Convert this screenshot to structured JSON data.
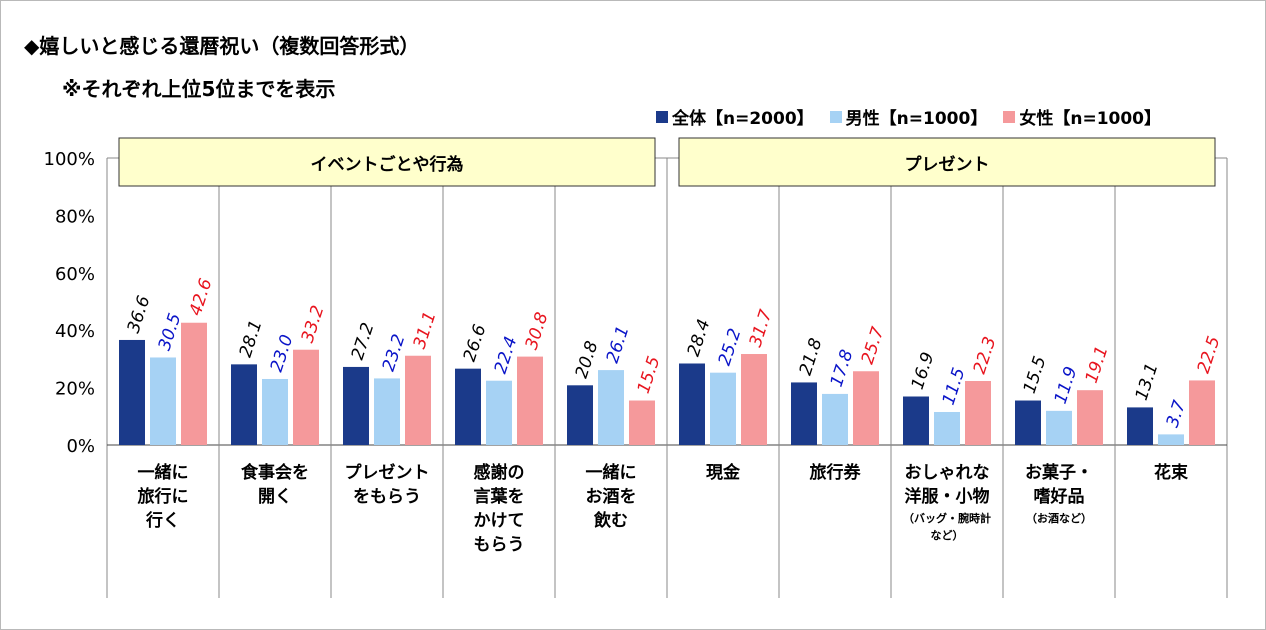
{
  "title": "◆嬉しいと感じる還暦祝い（複数回答形式）",
  "subtitle": "※それぞれ上位5位までを表示",
  "legend": [
    {
      "label": "全体【n=2000】",
      "color": "#1b3a8a"
    },
    {
      "label": "男性【n=1000】",
      "color": "#a6d2f4"
    },
    {
      "label": "女性【n=1000】",
      "color": "#f5999b"
    }
  ],
  "label_colors": [
    "#000000",
    "#0a14c8",
    "#e8141e"
  ],
  "chart_data": {
    "type": "bar",
    "ylim": [
      0,
      100
    ],
    "yticks": [
      "0%",
      "20%",
      "40%",
      "60%",
      "80%",
      "100%"
    ],
    "groups": [
      {
        "label": "イベントごとや行為",
        "start": 0,
        "end": 4
      },
      {
        "label": "プレゼント",
        "start": 5,
        "end": 9
      }
    ],
    "categories": [
      {
        "lines": [
          "一緒に",
          "旅行に",
          "行く"
        ],
        "note": []
      },
      {
        "lines": [
          "食事会を",
          "開く"
        ],
        "note": []
      },
      {
        "lines": [
          "プレゼント",
          "をもらう"
        ],
        "note": []
      },
      {
        "lines": [
          "感謝の",
          "言葉を",
          "かけて",
          "もらう"
        ],
        "note": []
      },
      {
        "lines": [
          "一緒に",
          "お酒を",
          "飲む"
        ],
        "note": []
      },
      {
        "lines": [
          "現金"
        ],
        "note": []
      },
      {
        "lines": [
          "旅行券"
        ],
        "note": []
      },
      {
        "lines": [
          "おしゃれな",
          "洋服・小物"
        ],
        "note": [
          "（バッグ・腕時計",
          "など）"
        ]
      },
      {
        "lines": [
          "お菓子・",
          "嗜好品"
        ],
        "note": [
          "（お酒など）"
        ]
      },
      {
        "lines": [
          "花束"
        ],
        "note": []
      }
    ],
    "series": [
      {
        "name": "全体【n=2000】",
        "values": [
          36.6,
          28.1,
          27.2,
          26.6,
          20.8,
          28.4,
          21.8,
          16.9,
          15.5,
          13.1
        ]
      },
      {
        "name": "男性【n=1000】",
        "values": [
          30.5,
          23.0,
          23.2,
          22.4,
          26.1,
          25.2,
          17.8,
          11.5,
          11.9,
          3.7
        ]
      },
      {
        "name": "女性【n=1000】",
        "values": [
          42.6,
          33.2,
          31.1,
          30.8,
          15.5,
          31.7,
          25.7,
          22.3,
          19.1,
          22.5
        ]
      }
    ]
  }
}
